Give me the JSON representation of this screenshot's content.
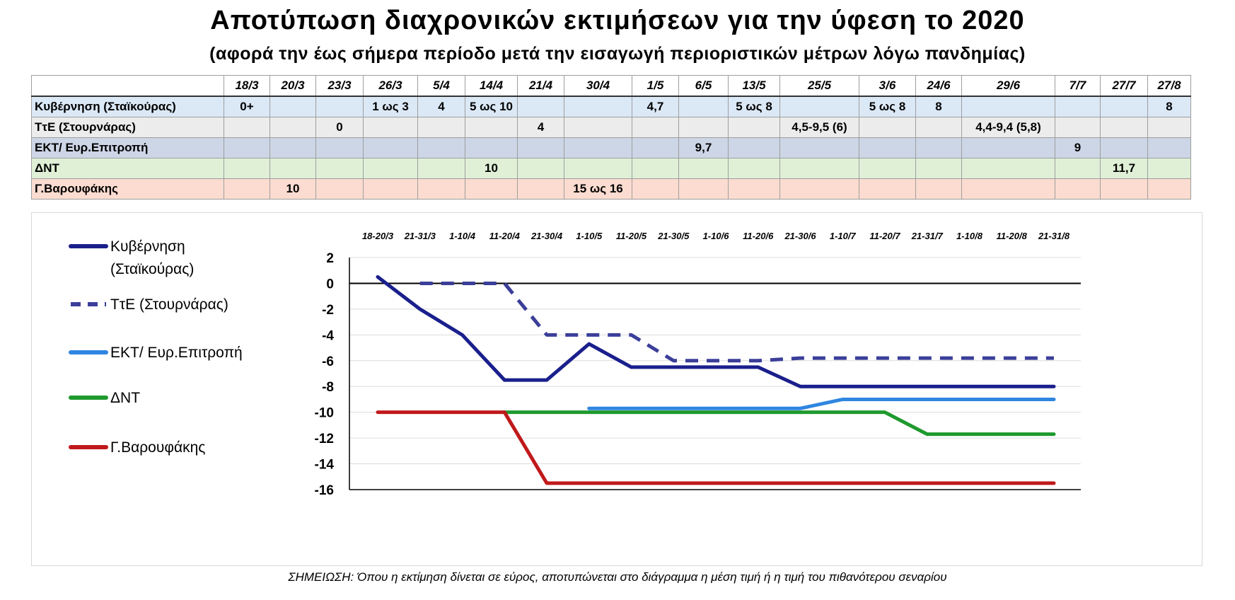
{
  "title": "Αποτύπωση διαχρονικών εκτιμήσεων για την ύφεση το 2020",
  "subtitle": "(αφορά την έως σήμερα περίοδο μετά την εισαγωγή περιοριστικών μέτρων λόγω πανδημίας)",
  "table": {
    "dates": [
      "18/3",
      "20/3",
      "23/3",
      "26/3",
      "5/4",
      "14/4",
      "21/4",
      "30/4",
      "1/5",
      "6/5",
      "13/5",
      "25/5",
      "3/6",
      "24/6",
      "29/6",
      "7/7",
      "27/7",
      "27/8"
    ],
    "rows": [
      {
        "label": "Κυβέρνηση (Σταϊκούρας)",
        "cells": [
          "0+",
          "",
          "",
          "1 ως 3",
          "4",
          "5 ως 10",
          "",
          "",
          "4,7",
          "",
          "5 ως 8",
          "",
          "5 ως 8",
          "8",
          "",
          "",
          "",
          "8"
        ]
      },
      {
        "label": "ΤτΕ (Στουρνάρας)",
        "cells": [
          "",
          "",
          "0",
          "",
          "",
          "",
          "4",
          "",
          "",
          "",
          "",
          "4,5-9,5 (6)",
          "",
          "",
          "4,4-9,4 (5,8)",
          "",
          "",
          ""
        ]
      },
      {
        "label": "ΕΚΤ/ Ευρ.Επιτροπή",
        "cells": [
          "",
          "",
          "",
          "",
          "",
          "",
          "",
          "",
          "",
          "9,7",
          "",
          "",
          "",
          "",
          "",
          "9",
          "",
          ""
        ]
      },
      {
        "label": "ΔΝΤ",
        "cells": [
          "",
          "",
          "",
          "",
          "",
          "10",
          "",
          "",
          "",
          "",
          "",
          "",
          "",
          "",
          "",
          "",
          "11,7",
          ""
        ]
      },
      {
        "label": "Γ.Βαρουφάκης",
        "cells": [
          "",
          "10",
          "",
          "",
          "",
          "",
          "",
          "15 ως 16",
          "",
          "",
          "",
          "",
          "",
          "",
          "",
          "",
          "",
          ""
        ]
      }
    ]
  },
  "chart_data": {
    "type": "line",
    "categories": [
      "18-20/3",
      "21-31/3",
      "1-10/4",
      "11-20/4",
      "21-30/4",
      "1-10/5",
      "11-20/5",
      "21-30/5",
      "1-10/6",
      "11-20/6",
      "21-30/6",
      "1-10/7",
      "11-20/7",
      "21-31/7",
      "1-10/8",
      "11-20/8",
      "21-31/8"
    ],
    "ylim": [
      -16,
      2
    ],
    "yticks": [
      "2",
      "0",
      "-2",
      "-4",
      "-6",
      "-8",
      "-10",
      "-12",
      "-14",
      "-16"
    ],
    "grid": true,
    "legend_position": "left",
    "series": [
      {
        "name": "Κυβέρνηση (Σταϊκούρας)",
        "name_lines": [
          "Κυβέρνηση",
          "(Σταϊκούρας)"
        ],
        "color": "#1a1f8c",
        "dash": false,
        "values": [
          0.5,
          -2,
          -4,
          -7.5,
          -7.5,
          -4.7,
          -6.5,
          -6.5,
          -6.5,
          -6.5,
          -8,
          -8,
          -8,
          -8,
          -8,
          -8,
          -8
        ]
      },
      {
        "name": "ΤτΕ (Στουρνάρας)",
        "name_lines": [
          "ΤτΕ (Στουρνάρας)"
        ],
        "color": "#3b3f99",
        "dash": true,
        "values": [
          null,
          0,
          0,
          0,
          -4,
          -4,
          -4,
          -6,
          -6,
          -6,
          -5.8,
          -5.8,
          -5.8,
          -5.8,
          -5.8,
          -5.8,
          -5.8
        ]
      },
      {
        "name": "ΕΚΤ/ Ευρ.Επιτροπή",
        "name_lines": [
          "ΕΚΤ/ Ευρ.Επιτροπή"
        ],
        "color": "#2f86e0",
        "dash": false,
        "values": [
          null,
          null,
          null,
          null,
          null,
          -9.7,
          -9.7,
          -9.7,
          -9.7,
          -9.7,
          -9.7,
          -9,
          -9,
          -9,
          -9,
          -9,
          -9
        ]
      },
      {
        "name": "ΔΝΤ",
        "name_lines": [
          "ΔΝΤ"
        ],
        "color": "#1f9a2e",
        "dash": false,
        "values": [
          null,
          null,
          null,
          -10,
          -10,
          -10,
          -10,
          -10,
          -10,
          -10,
          -10,
          -10,
          -10,
          -11.7,
          -11.7,
          -11.7,
          -11.7
        ]
      },
      {
        "name": "Γ.Βαρουφάκης",
        "name_lines": [
          "Γ.Βαρουφάκης"
        ],
        "color": "#c0191b",
        "dash": false,
        "values": [
          -10,
          -10,
          -10,
          -10,
          -15.5,
          -15.5,
          -15.5,
          -15.5,
          -15.5,
          -15.5,
          -15.5,
          -15.5,
          -15.5,
          -15.5,
          -15.5,
          -15.5,
          -15.5
        ]
      }
    ]
  },
  "note": "ΣΗΜΕΙΩΣΗ: Όπου η εκτίμηση δίνεται σε εύρος, αποτυπώνεται στο διάγραμμα η μέση τιμή ή η τιμή του πιθανότερου σεναρίου"
}
